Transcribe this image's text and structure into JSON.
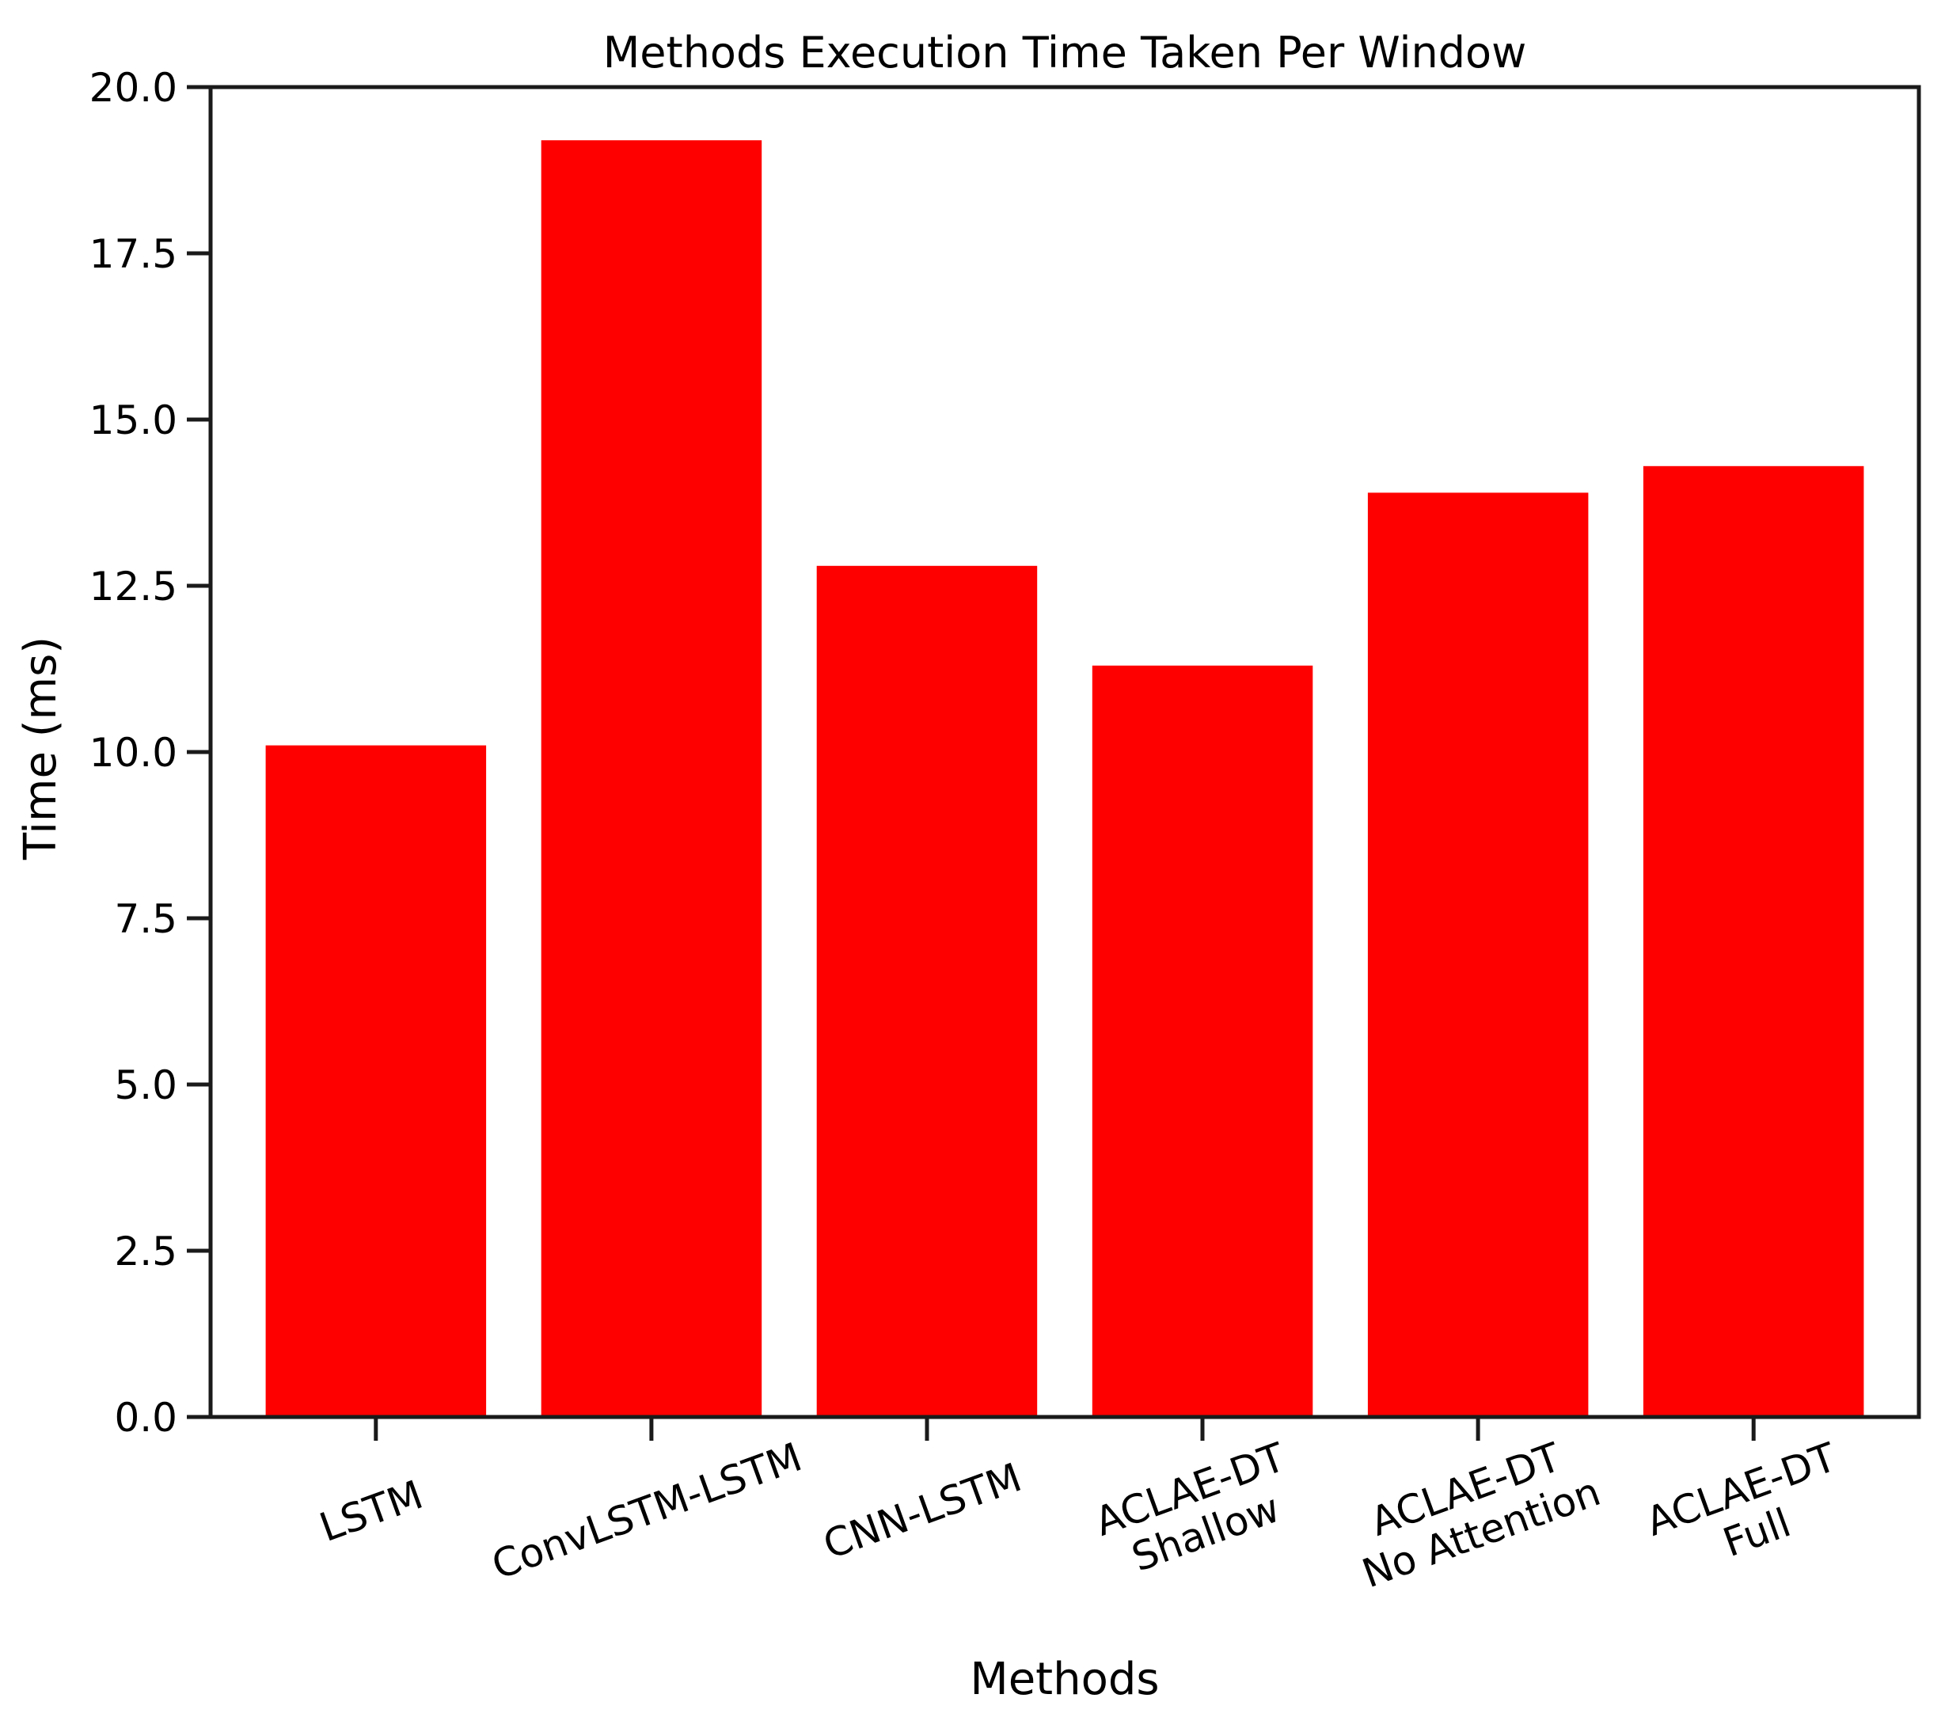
{
  "chart_data": {
    "type": "bar",
    "title": "Methods Execution Time Taken Per Window",
    "xlabel": "Methods",
    "ylabel": "Time (ms)",
    "categories": [
      [
        "LSTM"
      ],
      [
        "ConvLSTM-LSTM"
      ],
      [
        "CNN-LSTM"
      ],
      [
        "ACLAE-DT",
        "Shallow"
      ],
      [
        "ACLAE-DT",
        "No Attention"
      ],
      [
        "ACLAE-DT",
        "Full"
      ]
    ],
    "values": [
      10.1,
      19.2,
      12.8,
      11.3,
      13.9,
      14.3
    ],
    "ylim": [
      0,
      20
    ],
    "yticks": [
      "0.0",
      "2.5",
      "5.0",
      "7.5",
      "10.0",
      "12.5",
      "15.0",
      "17.5",
      "20.0"
    ],
    "bar_color": "#ff0000",
    "grid": false,
    "legend": false
  }
}
